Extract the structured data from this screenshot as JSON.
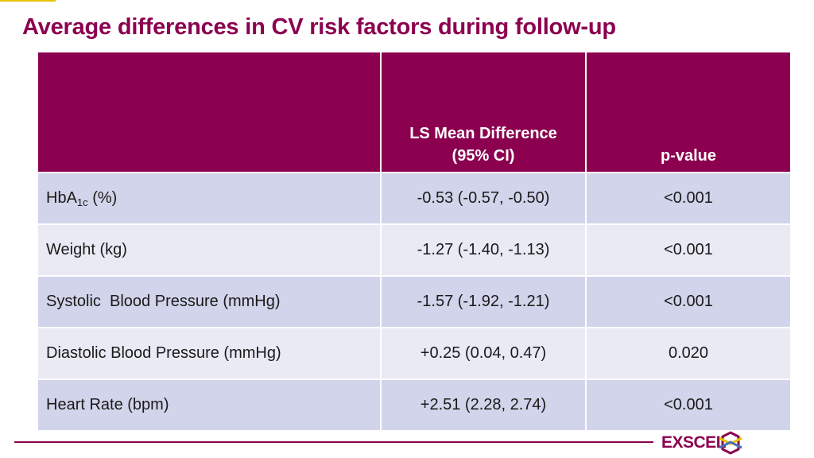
{
  "title": "Average differences in CV risk factors during follow-up",
  "table": {
    "headers": {
      "col1": "",
      "col2_line1": "LS Mean Difference",
      "col2_line2": "(95% CI)",
      "col3": "p-value"
    },
    "rows": [
      {
        "label": "HbA",
        "label_sub": "1c",
        "label_suffix": " (%)",
        "diff": "-0.53 (-0.57, -0.50)",
        "p": "<0.001"
      },
      {
        "label": "Weight (kg)",
        "diff": "-1.27 (-1.40, -1.13)",
        "p": "<0.001"
      },
      {
        "label": "Systolic  Blood Pressure (mmHg)",
        "diff": "-1.57 (-1.92, -1.21)",
        "p": "<0.001"
      },
      {
        "label": "Diastolic Blood Pressure (mmHg)",
        "diff": "+0.25 (0.04, 0.47)",
        "p": "0.020"
      },
      {
        "label": "Heart Rate (bpm)",
        "diff": "+2.51 (2.28, 2.74)",
        "p": "<0.001"
      }
    ]
  },
  "footer": {
    "logo_text": "EXSCEL",
    "logo_icon": "exscel-logo-icon"
  },
  "colors": {
    "brand": "#8b004f",
    "row_odd": "#d1d4ea",
    "row_even": "#e9eaf4",
    "accent_yellow": "#e8c200"
  }
}
